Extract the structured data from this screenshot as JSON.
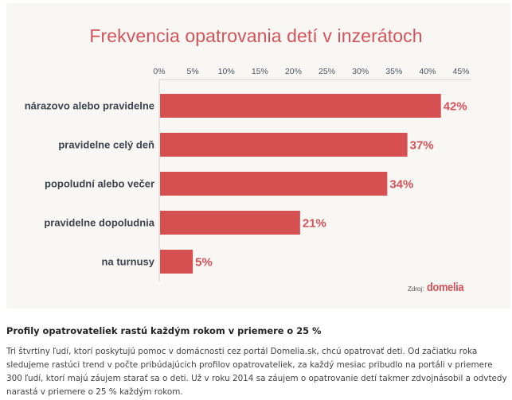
{
  "chart_data": {
    "type": "bar",
    "orientation": "horizontal",
    "title": "Frekvencia opatrovania detí v inzerátoch",
    "categories": [
      "nárazovo alebo pravidelne",
      "pravidelne celý deň",
      "popoludní alebo večer",
      "pravidelne dopoludnia",
      "na turnusy"
    ],
    "values": [
      42,
      37,
      34,
      21,
      5
    ],
    "value_labels": [
      "42%",
      "37%",
      "34%",
      "21%",
      "5%"
    ],
    "xlabel": "",
    "ylabel": "",
    "xlim": [
      0,
      45
    ],
    "x_ticks": [
      0,
      5,
      10,
      15,
      20,
      25,
      30,
      35,
      40,
      45
    ],
    "x_tick_labels": [
      "0%",
      "5%",
      "10%",
      "15%",
      "20%",
      "25%",
      "30%",
      "35%",
      "40%",
      "45%"
    ],
    "x_axis_position": "top",
    "grid": false,
    "bar_color": "#d65052",
    "source_label": "Zdroj:",
    "source_brand": "domelia"
  },
  "colors": {
    "accent": "#d4535a",
    "panel_background": "#f9f7f3",
    "bar": "#d65052"
  },
  "article": {
    "heading": "Profily opatrovateliek rastú každým rokom v priemere o 25 %",
    "body": "Tri štvrtiny ľudí, ktorí poskytujú pomoc v domácnosti cez portál Domelia.sk, chcú opatrovať deti. Od začiatku roka sledujeme rastúci trend v počte pribúdajúcich profilov opatrovateliek, za každý mesiac pribudlo na portáli v priemere 300 ľudí, ktorí majú záujem starať sa o deti. Už v roku 2014 sa záujem o opatrovanie detí takmer zdvojnásobil a odvtedy narastá v priemere o 25 % každým rokom."
  }
}
